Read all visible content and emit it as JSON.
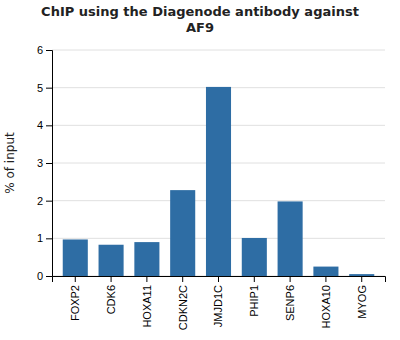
{
  "chart_data": {
    "type": "bar",
    "title": "ChIP using the Diagenode antibody against\nAF9",
    "ylabel": "% of input",
    "categories": [
      "FOXP2",
      "CDK6",
      "HOXA11",
      "CDKN2C",
      "JMJD1C",
      "PHIP1",
      "SENP6",
      "HOXA10",
      "MYOG"
    ],
    "values": [
      0.97,
      0.83,
      0.9,
      2.28,
      5.02,
      1.01,
      1.98,
      0.25,
      0.05
    ],
    "color": "#2E6DA4",
    "ylim": [
      0,
      6
    ],
    "yticks": [
      0,
      1,
      2,
      3,
      4,
      5,
      6
    ],
    "grid": true
  }
}
